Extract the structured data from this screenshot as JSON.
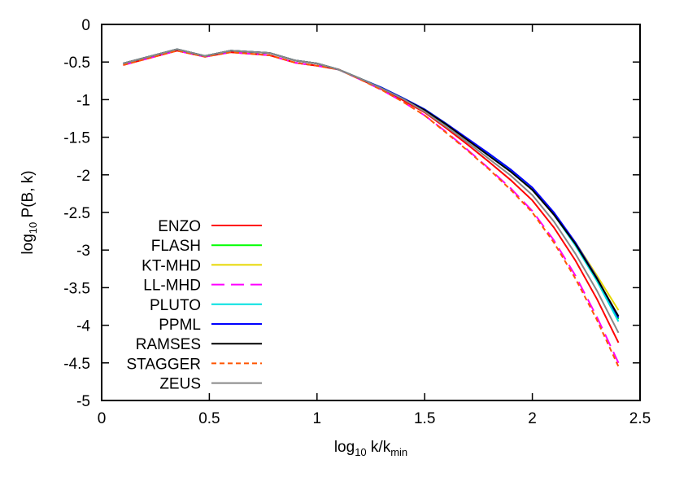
{
  "chart_data": {
    "type": "line",
    "xlabel": "log10 k/kmin",
    "ylabel": "log10 P(B, k)",
    "xlim": [
      0,
      2.5
    ],
    "ylim": [
      -5,
      0
    ],
    "x_ticks": [
      "0",
      "0.5",
      "1",
      "1.5",
      "2",
      "2.5"
    ],
    "y_ticks": [
      "0",
      "-0.5",
      "-1",
      "-1.5",
      "-2",
      "-2.5",
      "-3",
      "-3.5",
      "-4",
      "-4.5",
      "-5"
    ],
    "grid": false,
    "legend_placement": "bottom-left",
    "x": [
      0.1,
      0.35,
      0.48,
      0.6,
      0.78,
      0.9,
      1.0,
      1.1,
      1.2,
      1.3,
      1.4,
      1.5,
      1.6,
      1.7,
      1.8,
      1.9,
      2.0,
      2.1,
      2.2,
      2.3,
      2.4
    ],
    "series": [
      {
        "name": "ENZO",
        "color": "#ff0000",
        "dash": "solid",
        "values": [
          -0.54,
          -0.35,
          -0.43,
          -0.37,
          -0.41,
          -0.51,
          -0.55,
          -0.6,
          -0.73,
          -0.86,
          -1.01,
          -1.17,
          -1.38,
          -1.6,
          -1.83,
          -2.07,
          -2.34,
          -2.7,
          -3.14,
          -3.65,
          -4.23
        ]
      },
      {
        "name": "FLASH",
        "color": "#00ff00",
        "dash": "solid",
        "values": [
          -0.52,
          -0.33,
          -0.42,
          -0.35,
          -0.38,
          -0.48,
          -0.52,
          -0.6,
          -0.72,
          -0.84,
          -0.98,
          -1.13,
          -1.32,
          -1.53,
          -1.73,
          -1.94,
          -2.18,
          -2.51,
          -2.91,
          -3.39,
          -3.92
        ]
      },
      {
        "name": "KT-MHD",
        "color": "#e6d800",
        "dash": "solid",
        "values": [
          -0.52,
          -0.33,
          -0.42,
          -0.35,
          -0.38,
          -0.48,
          -0.52,
          -0.6,
          -0.72,
          -0.84,
          -0.98,
          -1.14,
          -1.33,
          -1.53,
          -1.74,
          -1.95,
          -2.19,
          -2.52,
          -2.9,
          -3.34,
          -3.8
        ]
      },
      {
        "name": "LL-MHD",
        "color": "#ff00ff",
        "dash": "long",
        "values": [
          -0.54,
          -0.35,
          -0.43,
          -0.37,
          -0.41,
          -0.51,
          -0.55,
          -0.6,
          -0.73,
          -0.87,
          -1.03,
          -1.21,
          -1.43,
          -1.67,
          -1.92,
          -2.18,
          -2.48,
          -2.87,
          -3.34,
          -3.89,
          -4.5
        ]
      },
      {
        "name": "PLUTO",
        "color": "#00e0e0",
        "dash": "solid",
        "values": [
          -0.52,
          -0.33,
          -0.42,
          -0.35,
          -0.38,
          -0.48,
          -0.52,
          -0.6,
          -0.72,
          -0.84,
          -0.98,
          -1.14,
          -1.33,
          -1.53,
          -1.74,
          -1.95,
          -2.2,
          -2.53,
          -2.94,
          -3.41,
          -3.95
        ]
      },
      {
        "name": "PPML",
        "color": "#0000ff",
        "dash": "solid",
        "values": [
          -0.52,
          -0.33,
          -0.42,
          -0.35,
          -0.38,
          -0.48,
          -0.52,
          -0.6,
          -0.72,
          -0.84,
          -0.98,
          -1.13,
          -1.32,
          -1.52,
          -1.72,
          -1.93,
          -2.17,
          -2.5,
          -2.9,
          -3.37,
          -3.9
        ]
      },
      {
        "name": "RAMSES",
        "color": "#000000",
        "dash": "solid",
        "values": [
          -0.52,
          -0.33,
          -0.42,
          -0.35,
          -0.38,
          -0.48,
          -0.52,
          -0.6,
          -0.72,
          -0.85,
          -0.99,
          -1.14,
          -1.33,
          -1.54,
          -1.75,
          -1.96,
          -2.2,
          -2.53,
          -2.92,
          -3.38,
          -3.88
        ]
      },
      {
        "name": "STAGGER",
        "color": "#ff5500",
        "dash": "short",
        "values": [
          -0.54,
          -0.35,
          -0.43,
          -0.37,
          -0.41,
          -0.51,
          -0.55,
          -0.6,
          -0.73,
          -0.87,
          -1.03,
          -1.21,
          -1.44,
          -1.68,
          -1.93,
          -2.2,
          -2.5,
          -2.9,
          -3.38,
          -3.93,
          -4.55
        ]
      },
      {
        "name": "ZEUS",
        "color": "#888888",
        "dash": "solid",
        "values": [
          -0.52,
          -0.33,
          -0.42,
          -0.35,
          -0.38,
          -0.48,
          -0.52,
          -0.6,
          -0.72,
          -0.85,
          -0.99,
          -1.16,
          -1.36,
          -1.57,
          -1.79,
          -2.01,
          -2.27,
          -2.62,
          -3.05,
          -3.54,
          -4.1
        ]
      }
    ]
  }
}
